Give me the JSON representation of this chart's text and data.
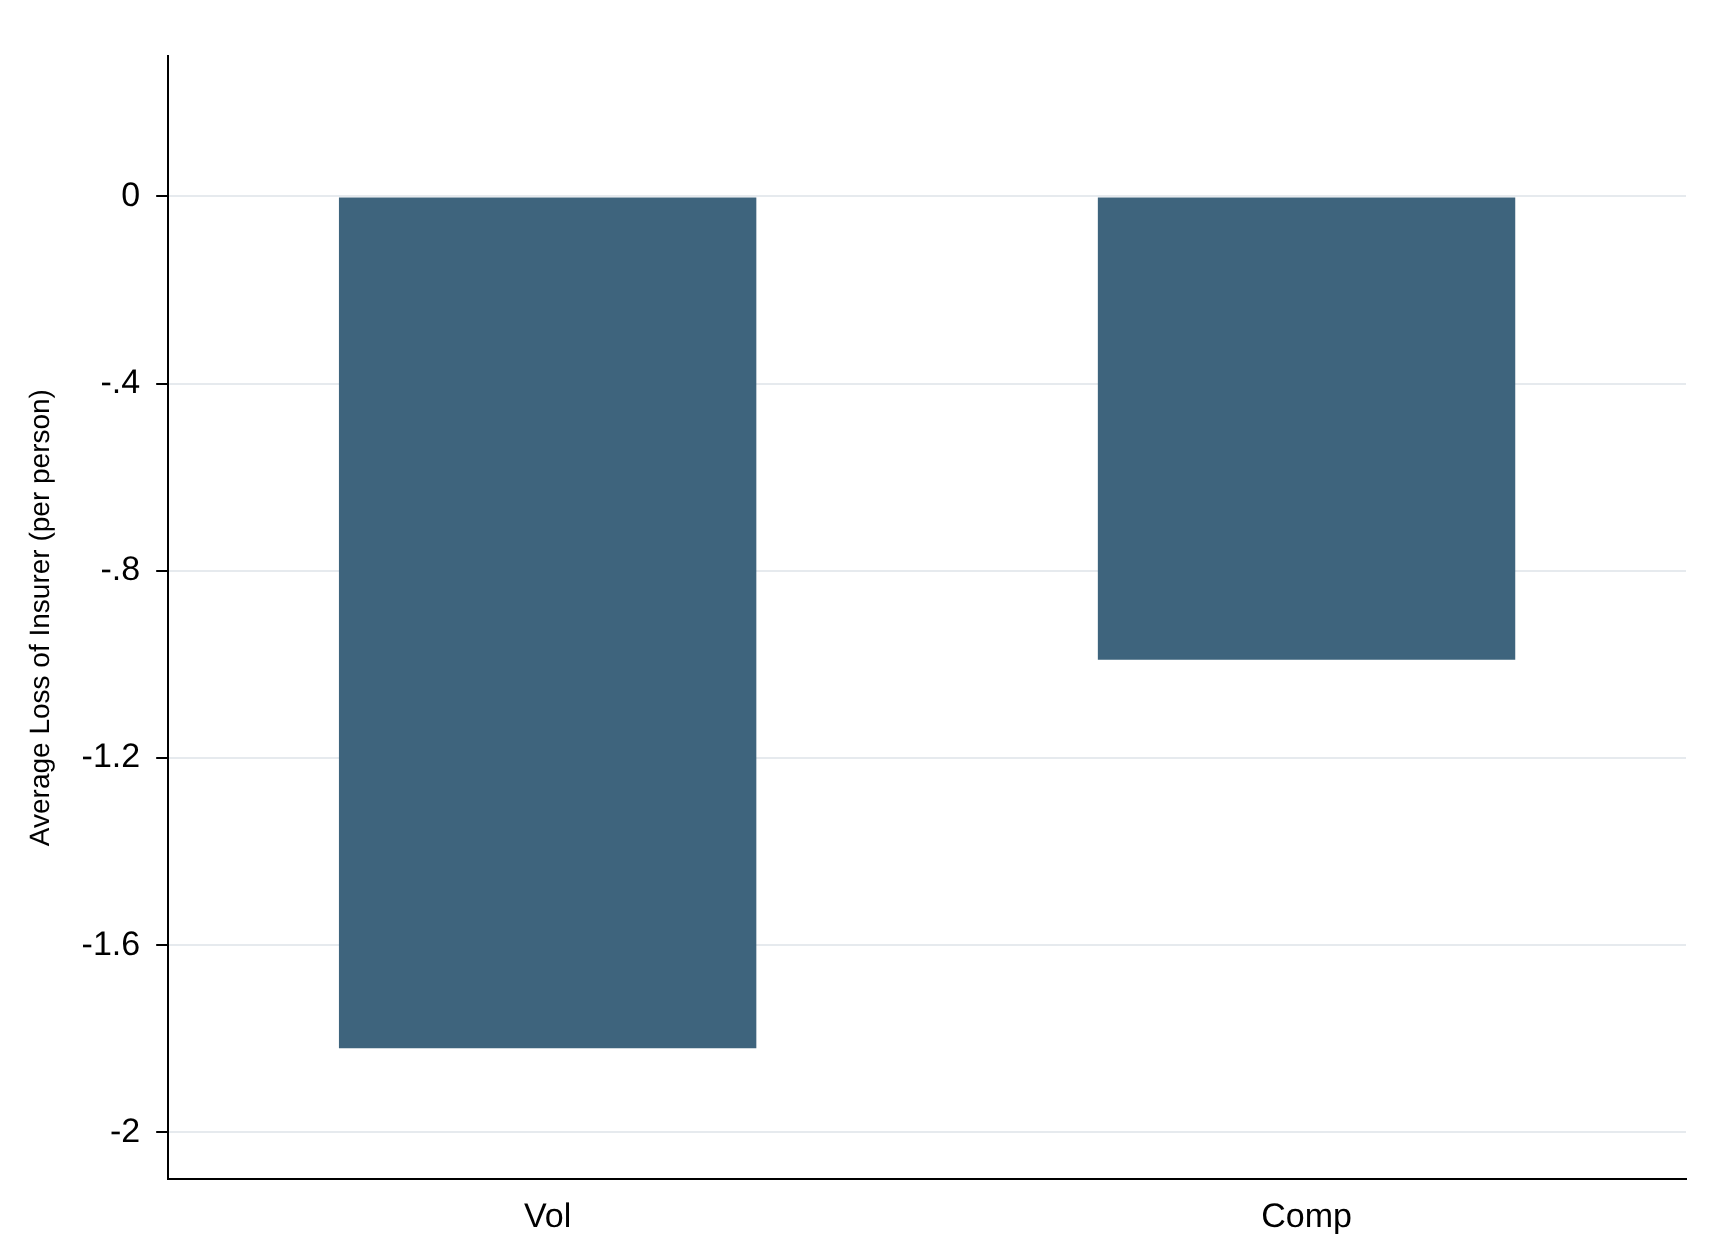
{
  "chart_data": {
    "type": "bar",
    "ylabel": "Average Loss of Insurer (per person)",
    "categories": [
      "Vol",
      "Comp"
    ],
    "series": [
      {
        "color": "#3e647d",
        "values": [
          -1.82,
          -0.99
        ]
      }
    ],
    "ylim": [
      -2.1,
      0.3
    ],
    "yticks": [
      0,
      {
        "value": -0.4,
        "label": "-.4"
      },
      {
        "value": -0.8,
        "label": "-.8"
      },
      -1.2,
      -1.6,
      -2
    ],
    "grid": "y",
    "legend": false
  }
}
